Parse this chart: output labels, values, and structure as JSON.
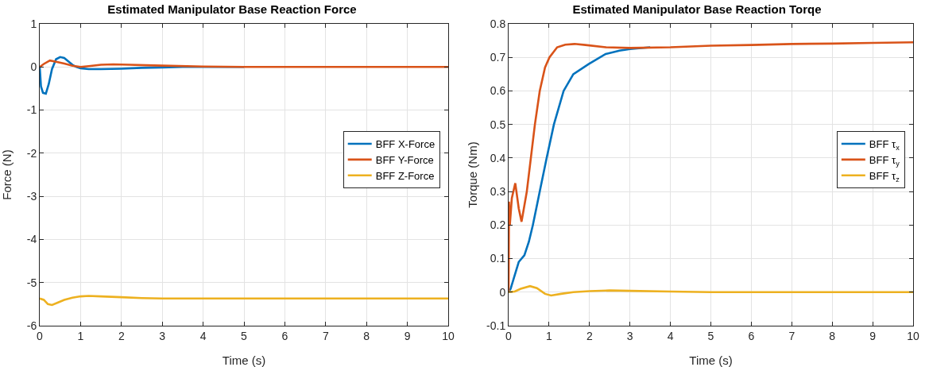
{
  "chart_data": [
    {
      "type": "line",
      "title": "Estimated Manipulator Base Reaction Force",
      "xlabel": "Time (s)",
      "ylabel": "Force (N)",
      "xlim": [
        0,
        10
      ],
      "ylim": [
        -6,
        1
      ],
      "xticks": [
        0,
        1,
        2,
        3,
        4,
        5,
        6,
        7,
        8,
        9,
        10
      ],
      "yticks": [
        -6,
        -5,
        -4,
        -3,
        -2,
        -1,
        0,
        1
      ],
      "grid": true,
      "legend": "right",
      "line_style": "solid",
      "marker": "none",
      "series": [
        {
          "name": "BFF X-Force",
          "color": "#0072bd",
          "x": [
            0,
            0.03,
            0.08,
            0.15,
            0.22,
            0.3,
            0.4,
            0.5,
            0.6,
            0.7,
            0.8,
            0.9,
            1.0,
            1.2,
            1.5,
            2,
            2.5,
            3,
            3.5,
            4,
            5
          ],
          "values": [
            0,
            -0.45,
            -0.6,
            -0.62,
            -0.4,
            -0.05,
            0.18,
            0.23,
            0.21,
            0.13,
            0.05,
            0,
            -0.03,
            -0.05,
            -0.05,
            -0.04,
            -0.02,
            -0.01,
            0,
            0,
            0
          ]
        },
        {
          "name": "BFF Y-Force",
          "color": "#d95319",
          "x": [
            0,
            0.1,
            0.25,
            0.4,
            0.6,
            0.8,
            1.0,
            1.2,
            1.5,
            1.8,
            2.2,
            2.6,
            3,
            4,
            5,
            6,
            7,
            8,
            9,
            10
          ],
          "values": [
            0,
            0.07,
            0.15,
            0.12,
            0.08,
            0.03,
            0,
            0.02,
            0.05,
            0.06,
            0.05,
            0.04,
            0.03,
            0.01,
            0,
            0,
            0,
            0,
            0,
            0
          ]
        },
        {
          "name": "BFF Z-Force",
          "color": "#edb120",
          "x": [
            0,
            0.1,
            0.2,
            0.3,
            0.45,
            0.6,
            0.8,
            1.0,
            1.2,
            1.5,
            2,
            2.5,
            3,
            4,
            5,
            6,
            7,
            8,
            9,
            10
          ],
          "values": [
            -5.37,
            -5.4,
            -5.5,
            -5.52,
            -5.46,
            -5.4,
            -5.35,
            -5.32,
            -5.31,
            -5.32,
            -5.34,
            -5.36,
            -5.37,
            -5.37,
            -5.37,
            -5.37,
            -5.37,
            -5.37,
            -5.37,
            -5.37
          ]
        }
      ]
    },
    {
      "type": "line",
      "title": "Estimated Manipulator Base Reaction Torqe",
      "xlabel": "Time (s)",
      "ylabel": "Torque (Nm)",
      "xlim": [
        0,
        10
      ],
      "ylim": [
        -0.1,
        0.8
      ],
      "xticks": [
        0,
        1,
        2,
        3,
        4,
        5,
        6,
        7,
        8,
        9,
        10
      ],
      "yticks": [
        -0.1,
        0,
        0.1,
        0.2,
        0.3,
        0.4,
        0.5,
        0.6,
        0.7,
        0.8
      ],
      "grid": true,
      "legend": "right",
      "line_style": "solid",
      "marker": "none",
      "series": [
        {
          "name": "BFF τ$_{x}$",
          "color": "#0072bd",
          "x": [
            0,
            0.05,
            0.15,
            0.25,
            0.39,
            0.5,
            0.6,
            0.77,
            0.94,
            1.12,
            1.36,
            1.6,
            1.98,
            2.4,
            2.74,
            3,
            3.5
          ],
          "values": [
            0,
            0.01,
            0.05,
            0.09,
            0.11,
            0.15,
            0.2,
            0.3,
            0.4,
            0.5,
            0.6,
            0.65,
            0.68,
            0.71,
            0.72,
            0.725,
            0.73
          ]
        },
        {
          "name": "BFF τ$_{y}$",
          "color": "#d95319",
          "x": [
            0,
            0.01,
            0.03,
            0.08,
            0.165,
            0.25,
            0.32,
            0.45,
            0.55,
            0.65,
            0.77,
            0.9,
            1.01,
            1.2,
            1.4,
            1.63,
            1.9,
            2.4,
            3,
            4,
            5,
            6,
            7,
            8,
            9,
            10
          ],
          "values": [
            0,
            0.27,
            0.2,
            0.28,
            0.325,
            0.25,
            0.21,
            0.3,
            0.4,
            0.5,
            0.6,
            0.67,
            0.7,
            0.73,
            0.738,
            0.74,
            0.737,
            0.73,
            0.728,
            0.73,
            0.735,
            0.737,
            0.74,
            0.741,
            0.743,
            0.745
          ]
        },
        {
          "name": "BFF τ$_{z}$",
          "color": "#edb120",
          "x": [
            0,
            0.15,
            0.3,
            0.53,
            0.7,
            0.9,
            1.05,
            1.3,
            1.6,
            2,
            2.5,
            3,
            4,
            5,
            6,
            7,
            8,
            9,
            10
          ],
          "values": [
            0,
            0.002,
            0.01,
            0.018,
            0.012,
            -0.005,
            -0.01,
            -0.005,
            0,
            0.003,
            0.005,
            0.004,
            0.002,
            0,
            0,
            0,
            0,
            0,
            0
          ]
        }
      ]
    }
  ]
}
